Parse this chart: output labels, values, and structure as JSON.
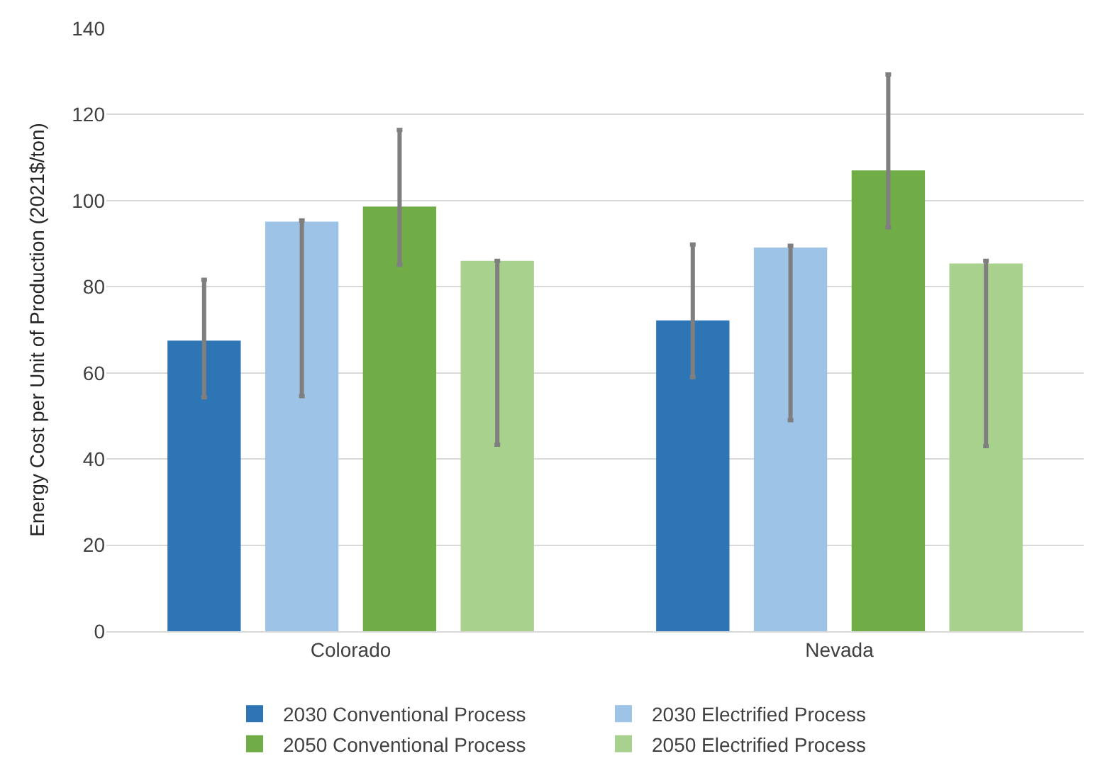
{
  "chart_data": {
    "type": "bar",
    "ylabel": "Energy Cost per Unit of Production (2021$/ton)",
    "categories": [
      "Colorado",
      "Nevada"
    ],
    "series": [
      {
        "name": "2030 Conventional Process",
        "color": "#2e75b6",
        "values": [
          67.5,
          72.2
        ],
        "errors": [
          [
            54.3,
            81.6
          ],
          [
            59,
            89.8
          ]
        ]
      },
      {
        "name": "2030 Electrified Process",
        "color": "#9dc3e6",
        "values": [
          95.1,
          89.1
        ],
        "errors": [
          [
            54.6,
            95.4
          ],
          [
            49,
            89.5
          ]
        ]
      },
      {
        "name": "2050 Conventional Process",
        "color": "#70ad47",
        "values": [
          98.6,
          107
        ],
        "errors": [
          [
            85.1,
            116.4
          ],
          [
            93.8,
            129.3
          ]
        ]
      },
      {
        "name": "2050 Electrified Process",
        "color": "#a9d18e",
        "values": [
          86,
          85.4
        ],
        "errors": [
          [
            43.3,
            86
          ],
          [
            43,
            86
          ]
        ]
      }
    ],
    "ylim": [
      0,
      140
    ],
    "yticks": [
      0,
      20,
      40,
      60,
      80,
      100,
      120,
      140
    ],
    "grid": "y",
    "legend": "bottom"
  }
}
